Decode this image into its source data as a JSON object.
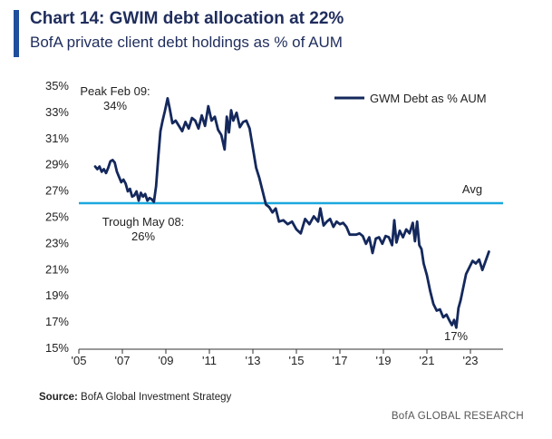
{
  "header": {
    "title": "Chart 14: GWIM debt allocation at 22%",
    "subtitle": "BofA private client debt holdings as % of AUM"
  },
  "footer": {
    "source_label": "Source:",
    "source_text": "BofA Global Investment Strategy",
    "brand": "BofA GLOBAL RESEARCH"
  },
  "colors": {
    "series": "#14285c",
    "avg_line": "#1ba8dd",
    "accent": "#1f4e9c"
  },
  "chart_data": {
    "type": "line",
    "title": "Chart 14: GWIM debt allocation at 22%",
    "subtitle": "BofA private client debt holdings as % of AUM",
    "xlabel": "",
    "ylabel": "",
    "xlim": [
      2005,
      2024.5
    ],
    "ylim": [
      15,
      35
    ],
    "x_ticks": [
      2005,
      2007,
      2009,
      2011,
      2013,
      2015,
      2017,
      2019,
      2021,
      2023
    ],
    "x_tick_labels": [
      "'05",
      "'07",
      "'09",
      "'11",
      "'13",
      "'15",
      "'17",
      "'19",
      "'21",
      "'23"
    ],
    "y_ticks": [
      15,
      17,
      19,
      21,
      23,
      25,
      27,
      29,
      31,
      33,
      35
    ],
    "y_tick_labels": [
      "15%",
      "17%",
      "19%",
      "21%",
      "23%",
      "25%",
      "27%",
      "29%",
      "31%",
      "33%",
      "35%"
    ],
    "grid": false,
    "legend": {
      "position": "top-right",
      "entries": [
        "GWM Debt as % AUM"
      ]
    },
    "series": [
      {
        "name": "GWM Debt as % AUM",
        "x": [
          2005.75,
          2005.85,
          2005.95,
          2006.05,
          2006.15,
          2006.25,
          2006.35,
          2006.45,
          2006.55,
          2006.65,
          2006.75,
          2006.85,
          2006.95,
          2007.05,
          2007.15,
          2007.25,
          2007.35,
          2007.45,
          2007.55,
          2007.65,
          2007.75,
          2007.85,
          2007.95,
          2008.05,
          2008.15,
          2008.25,
          2008.35,
          2008.45,
          2008.55,
          2008.65,
          2008.75,
          2008.85,
          2008.95,
          2009.08,
          2009.18,
          2009.3,
          2009.45,
          2009.6,
          2009.75,
          2009.9,
          2010.05,
          2010.2,
          2010.35,
          2010.5,
          2010.65,
          2010.8,
          2010.95,
          2011.1,
          2011.25,
          2011.4,
          2011.55,
          2011.7,
          2011.8,
          2011.9,
          2012.0,
          2012.1,
          2012.25,
          2012.4,
          2012.55,
          2012.7,
          2012.85,
          2013.0,
          2013.15,
          2013.3,
          2013.45,
          2013.6,
          2013.75,
          2013.9,
          2014.05,
          2014.2,
          2014.4,
          2014.6,
          2014.8,
          2015.0,
          2015.2,
          2015.4,
          2015.6,
          2015.8,
          2016.0,
          2016.1,
          2016.25,
          2016.4,
          2016.55,
          2016.7,
          2016.85,
          2017.0,
          2017.15,
          2017.3,
          2017.45,
          2017.6,
          2017.75,
          2017.9,
          2018.05,
          2018.2,
          2018.35,
          2018.5,
          2018.65,
          2018.8,
          2018.95,
          2019.1,
          2019.25,
          2019.4,
          2019.5,
          2019.6,
          2019.75,
          2019.9,
          2020.05,
          2020.2,
          2020.35,
          2020.45,
          2020.55,
          2020.65,
          2020.75,
          2020.85,
          2021.0,
          2021.15,
          2021.3,
          2021.45,
          2021.6,
          2021.75,
          2021.9,
          2022.05,
          2022.15,
          2022.25,
          2022.35,
          2022.45,
          2022.55,
          2022.65,
          2022.8,
          2022.95,
          2023.1,
          2023.25,
          2023.4,
          2023.55,
          2023.7,
          2023.85
        ],
        "y": [
          28.8,
          28.6,
          28.8,
          28.4,
          28.6,
          28.3,
          28.7,
          29.2,
          29.3,
          29.1,
          28.4,
          28.0,
          27.6,
          27.8,
          27.5,
          26.9,
          27.1,
          26.5,
          26.6,
          26.9,
          26.2,
          26.8,
          26.5,
          26.7,
          26.2,
          26.4,
          26.3,
          26.1,
          27.3,
          29.5,
          31.5,
          32.3,
          33.0,
          34.0,
          33.2,
          32.1,
          32.3,
          31.9,
          31.5,
          32.2,
          31.7,
          32.5,
          32.3,
          31.7,
          32.7,
          31.9,
          33.4,
          32.3,
          32.6,
          31.6,
          31.2,
          30.1,
          32.6,
          31.4,
          33.1,
          32.3,
          32.9,
          31.8,
          32.2,
          32.3,
          31.7,
          30.2,
          28.7,
          27.9,
          26.9,
          25.9,
          25.7,
          25.3,
          25.6,
          24.6,
          24.7,
          24.4,
          24.6,
          24.0,
          23.7,
          24.8,
          24.4,
          25.0,
          24.6,
          25.6,
          24.3,
          24.6,
          24.8,
          24.2,
          24.6,
          24.4,
          24.5,
          24.2,
          23.6,
          23.6,
          23.6,
          23.7,
          23.5,
          22.9,
          23.4,
          22.2,
          23.3,
          23.4,
          22.9,
          23.5,
          23.4,
          22.8,
          24.7,
          23.0,
          23.9,
          23.4,
          24.0,
          23.7,
          24.5,
          23.1,
          24.6,
          22.8,
          22.5,
          21.4,
          20.5,
          19.3,
          18.3,
          17.8,
          17.9,
          17.3,
          17.5,
          17.0,
          16.7,
          17.1,
          16.5,
          18.0,
          18.6,
          19.4,
          20.6,
          21.1,
          21.6,
          21.4,
          21.7,
          20.9,
          21.6,
          22.3
        ]
      }
    ],
    "reference_line": {
      "label": "Avg",
      "value": 26.0
    },
    "annotations": [
      {
        "lines": [
          "Peak Feb 09:",
          "34%"
        ]
      },
      {
        "lines": [
          "Trough May 08:",
          "26%"
        ]
      },
      {
        "lines": [
          "17%"
        ]
      }
    ]
  }
}
